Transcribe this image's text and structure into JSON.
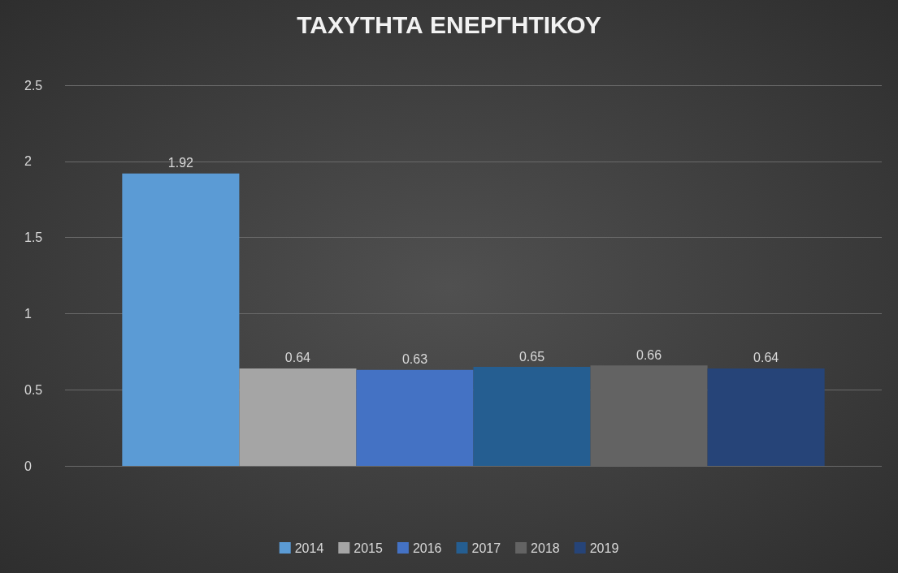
{
  "chart_data": {
    "type": "bar",
    "title": "ΤΑΧΥΤΗΤΑ ΕΝΕΡΓΗΤΙΚΟΥ",
    "categories": [
      null
    ],
    "series": [
      {
        "name": "2014",
        "color": "#5b9bd5",
        "values": [
          1.92
        ]
      },
      {
        "name": "2015",
        "color": "#a5a5a5",
        "values": [
          0.64
        ]
      },
      {
        "name": "2016",
        "color": "#4472c4",
        "values": [
          0.63
        ]
      },
      {
        "name": "2017",
        "color": "#255e91",
        "values": [
          0.65
        ]
      },
      {
        "name": "2018",
        "color": "#636363",
        "values": [
          0.66
        ]
      },
      {
        "name": "2019",
        "color": "#264478",
        "values": [
          0.64
        ]
      }
    ],
    "ylim": [
      0,
      2.5
    ],
    "yticks": [
      0,
      0.5,
      1,
      1.5,
      2,
      2.5
    ],
    "grid": "y",
    "legend": "bottom",
    "data_labels": true
  }
}
